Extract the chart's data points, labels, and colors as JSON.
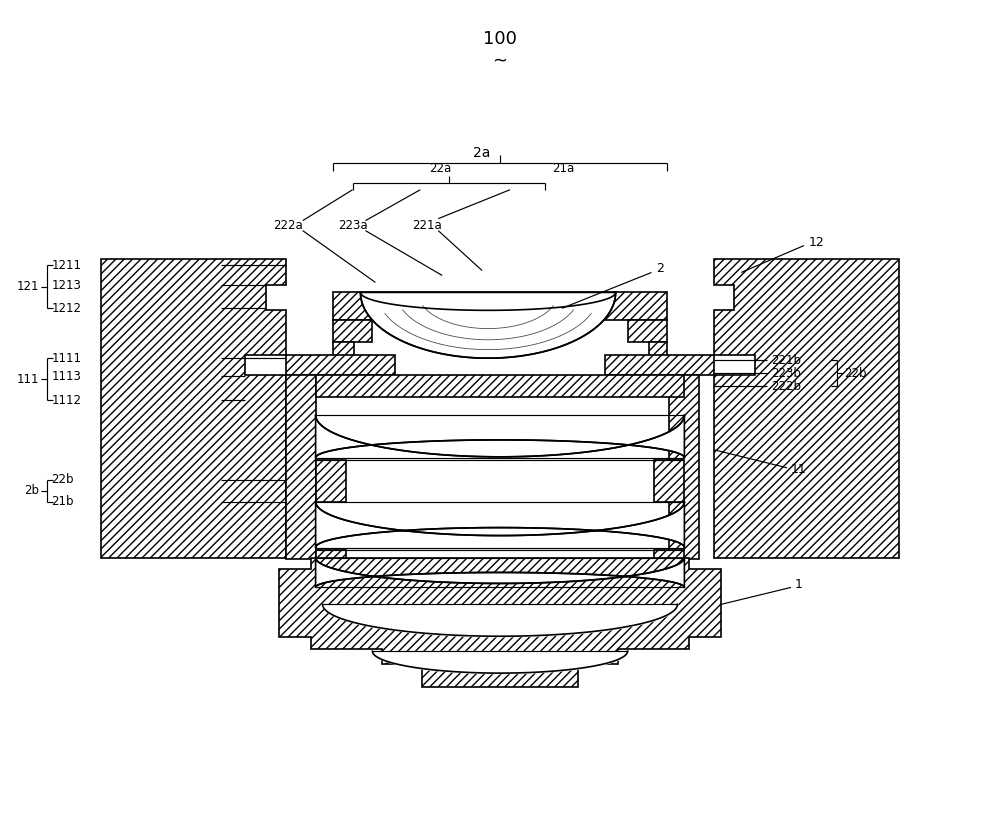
{
  "bg": "#ffffff",
  "ec": "#000000",
  "hatch": "////",
  "lw": 1.2,
  "la": 0.85,
  "fs": 9,
  "sm": 8.5,
  "labels": {
    "100": "100",
    "2a": "2a",
    "22a": "22a",
    "21a": "21a",
    "222a": "222a",
    "223a": "223a",
    "221a": "221a",
    "2": "2",
    "12": "12",
    "221b": "221b",
    "223b": "223b",
    "22b": "22b",
    "222b": "222b",
    "11": "11",
    "1211": "1211",
    "1213": "1213",
    "1212": "1212",
    "121": "121",
    "1111": "1111",
    "1113": "1113",
    "1112": "1112",
    "111": "111",
    "22b_l": "22b",
    "2b": "2b",
    "21b": "21b",
    "1": "1"
  }
}
